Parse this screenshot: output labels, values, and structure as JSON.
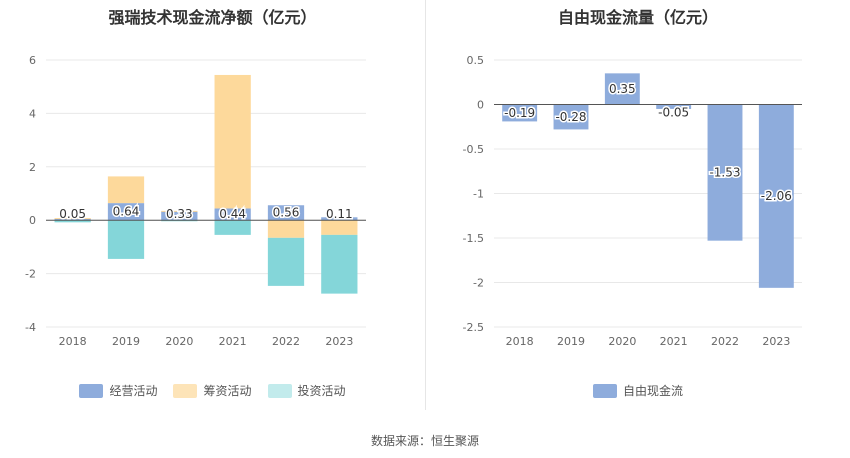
{
  "source": "数据来源：恒生聚源",
  "chart_data": [
    {
      "type": "bar",
      "stacked": true,
      "title": "强瑞技术现金流净额（亿元）",
      "categories": [
        "2018",
        "2019",
        "2020",
        "2021",
        "2022",
        "2023"
      ],
      "ylim": [
        -4,
        6
      ],
      "yticks": [
        -4,
        -2,
        0,
        2,
        4,
        6
      ],
      "grid": true,
      "legend_position": "bottom",
      "series": [
        {
          "name": "经营活动",
          "color": "#8eacdc",
          "values": [
            0.05,
            0.64,
            0.33,
            0.44,
            0.56,
            0.11
          ],
          "labels": [
            "0.05",
            "0.64",
            "0.33",
            "0.44",
            "0.56",
            "0.11"
          ]
        },
        {
          "name": "筹资活动",
          "color": "#fdd99b",
          "values": [
            0.03,
            1.0,
            0.02,
            5.0,
            -0.66,
            -0.55
          ]
        },
        {
          "name": "投资活动",
          "color": "#84d6d9",
          "values": [
            -0.08,
            -1.45,
            -0.04,
            -0.55,
            -1.8,
            -2.2
          ]
        }
      ]
    },
    {
      "type": "bar",
      "title": "自由现金流量（亿元）",
      "categories": [
        "2018",
        "2019",
        "2020",
        "2021",
        "2022",
        "2023"
      ],
      "ylim": [
        -2.5,
        0.5
      ],
      "yticks": [
        -2.5,
        -2,
        -1.5,
        -1,
        -0.5,
        0,
        0.5
      ],
      "grid": true,
      "legend_position": "bottom",
      "series": [
        {
          "name": "自由现金流",
          "color": "#8eacdc",
          "values": [
            -0.19,
            -0.28,
            0.35,
            -0.05,
            -1.53,
            -2.06
          ],
          "labels": [
            "-0.19",
            "-0.28",
            "0.35",
            "-0.05",
            "-1.53",
            "-2.06"
          ]
        }
      ]
    }
  ]
}
